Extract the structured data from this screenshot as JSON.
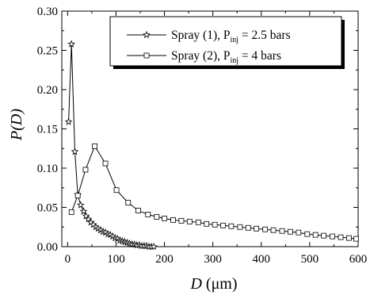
{
  "chart_data": {
    "type": "line",
    "title": "",
    "xlabel": {
      "base": "D",
      "unit": " (μm)"
    },
    "ylabel": "P(D)",
    "xlim": [
      -12,
      600
    ],
    "ylim": [
      0,
      0.3
    ],
    "x_ticks": [
      0,
      100,
      200,
      300,
      400,
      500,
      600
    ],
    "x_tick_labels": [
      "0",
      "100",
      "200",
      "300",
      "400",
      "500",
      "600"
    ],
    "y_ticks": [
      0,
      0.05,
      0.1,
      0.15,
      0.2,
      0.25,
      0.3
    ],
    "y_tick_labels": [
      "0.00",
      "0.05",
      "0.10",
      "0.15",
      "0.20",
      "0.25",
      "0.30"
    ],
    "grid": false,
    "legend_position": "top-right",
    "series": [
      {
        "name": {
          "pre": "Spray (1), P",
          "sub": "inj",
          "post": " = 2.5 bars"
        },
        "marker": "star",
        "points": [
          [
            2,
            0.159
          ],
          [
            8,
            0.258
          ],
          [
            15,
            0.121
          ],
          [
            21,
            0.066
          ],
          [
            27,
            0.053
          ],
          [
            33,
            0.045
          ],
          [
            38,
            0.039
          ],
          [
            43,
            0.035
          ],
          [
            48,
            0.031
          ],
          [
            53,
            0.028
          ],
          [
            58,
            0.025
          ],
          [
            63,
            0.023
          ],
          [
            68,
            0.021
          ],
          [
            73,
            0.019
          ],
          [
            78,
            0.018
          ],
          [
            83,
            0.016
          ],
          [
            88,
            0.015
          ],
          [
            93,
            0.013
          ],
          [
            98,
            0.011
          ],
          [
            103,
            0.01
          ],
          [
            108,
            0.008
          ],
          [
            113,
            0.007
          ],
          [
            118,
            0.006
          ],
          [
            123,
            0.005
          ],
          [
            128,
            0.004
          ],
          [
            133,
            0.003
          ],
          [
            138,
            0.003
          ],
          [
            143,
            0.002
          ],
          [
            148,
            0.002
          ],
          [
            153,
            0.001
          ],
          [
            158,
            0.001
          ],
          [
            163,
            0.001
          ],
          [
            168,
            0.0
          ],
          [
            173,
            0.0
          ],
          [
            178,
            0.0
          ]
        ]
      },
      {
        "name": {
          "pre": "Spray (2), P",
          "sub": "inj",
          "post": " = 4 bars"
        },
        "marker": "square",
        "points": [
          [
            8,
            0.044
          ],
          [
            21,
            0.065
          ],
          [
            37,
            0.098
          ],
          [
            56,
            0.128
          ],
          [
            78,
            0.106
          ],
          [
            101,
            0.072
          ],
          [
            125,
            0.056
          ],
          [
            146,
            0.046
          ],
          [
            166,
            0.041
          ],
          [
            184,
            0.038
          ],
          [
            200,
            0.036
          ],
          [
            218,
            0.034
          ],
          [
            235,
            0.033
          ],
          [
            252,
            0.032
          ],
          [
            270,
            0.031
          ],
          [
            287,
            0.029
          ],
          [
            304,
            0.028
          ],
          [
            321,
            0.027
          ],
          [
            338,
            0.026
          ],
          [
            356,
            0.025
          ],
          [
            373,
            0.024
          ],
          [
            390,
            0.023
          ],
          [
            408,
            0.022
          ],
          [
            425,
            0.021
          ],
          [
            443,
            0.02
          ],
          [
            460,
            0.019
          ],
          [
            477,
            0.018
          ],
          [
            495,
            0.016
          ],
          [
            512,
            0.015
          ],
          [
            529,
            0.014
          ],
          [
            547,
            0.013
          ],
          [
            564,
            0.012
          ],
          [
            581,
            0.011
          ],
          [
            596,
            0.01
          ]
        ]
      }
    ]
  }
}
